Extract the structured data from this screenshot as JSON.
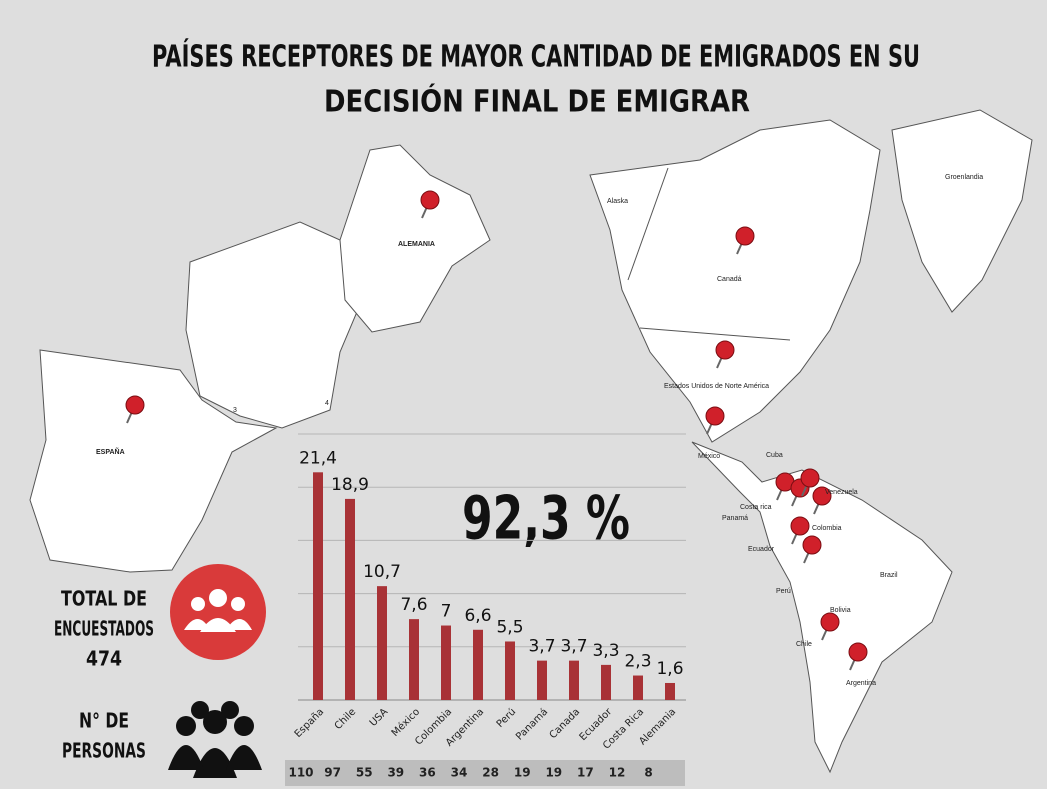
{
  "title": [
    "PAÍSES RECEPTORES DE MAYOR CANTIDAD DE EMIGRADOS EN SU",
    "DECISIÓN FINAL DE EMIGRAR"
  ],
  "summary": "92,3 %",
  "respondents": {
    "lines": [
      "TOTAL DE",
      "ENCUESTADOS",
      "474"
    ]
  },
  "persons": {
    "lines": [
      "N° DE",
      "PERSONAS"
    ],
    "counts": [
      110,
      97,
      55,
      39,
      36,
      34,
      28,
      19,
      19,
      17,
      12,
      8
    ]
  },
  "map_labels": [
    "ALEMANIA",
    "ESPAÑA",
    "3",
    "4",
    "Alaska",
    "Groenlandia",
    "Canadá",
    "Estados Unidos de Norte América",
    "México",
    "Cuba",
    "Venezuela",
    "Costa rica",
    "Panamá",
    "Colombia",
    "Ecuador",
    "Perú",
    "Brazil",
    "Bolivia",
    "Chile",
    "Argentina"
  ],
  "chart_data": {
    "type": "bar",
    "categories": [
      "España",
      "Chile",
      "USA",
      "México",
      "Colombia",
      "Argentina",
      "Perú",
      "Panamá",
      "Canada",
      "Ecuador",
      "Costa Rica",
      "Alemania"
    ],
    "values": [
      21.4,
      18.9,
      10.7,
      7.6,
      7,
      6.6,
      5.5,
      3.7,
      3.7,
      3.3,
      2.3,
      1.6
    ],
    "value_labels": [
      "21,4",
      "18,9",
      "10,7",
      "7,6",
      "7",
      "6,6",
      "5,5",
      "3,7",
      "3,7",
      "3,3",
      "2,3",
      "1,6"
    ],
    "color": "#a83236",
    "ylim": [
      0,
      25
    ],
    "yticks": [
      0,
      5,
      10,
      15,
      20,
      25
    ],
    "grid": true
  }
}
